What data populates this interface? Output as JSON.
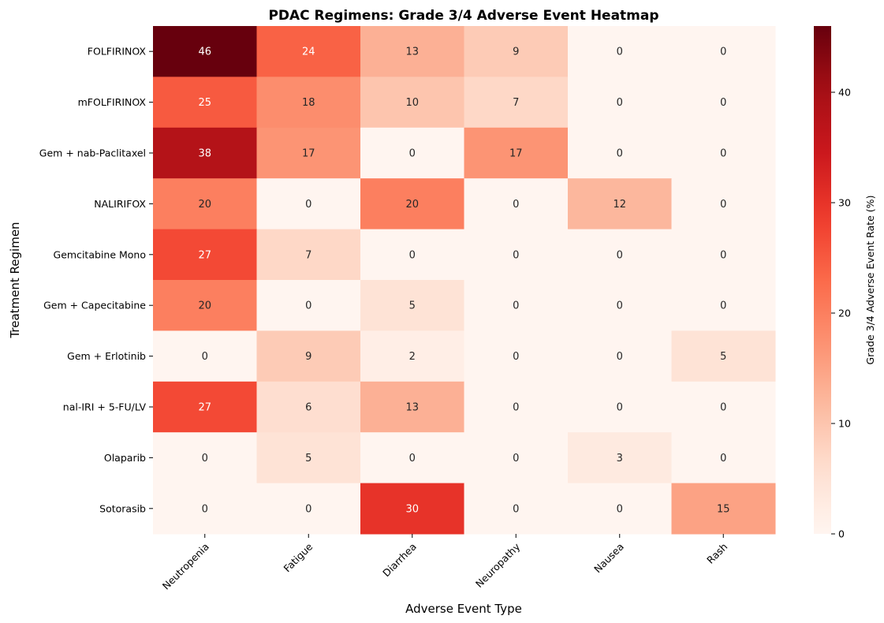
{
  "chart_data": {
    "type": "heatmap",
    "title": "PDAC Regimens: Grade 3/4 Adverse Event Heatmap",
    "xlabel": "Adverse Event Type",
    "ylabel": "Treatment Regimen",
    "colorbar_label": "Grade 3/4 Adverse Event Rate (%)",
    "colormap": "Reds",
    "vmin": 0,
    "vmax": 46,
    "colorbar_ticks": [
      0,
      10,
      20,
      30,
      40
    ],
    "columns": [
      "Neutropenia",
      "Fatigue",
      "Diarrhea",
      "Neuropathy",
      "Nausea",
      "Rash"
    ],
    "rows": [
      "FOLFIRINOX",
      "mFOLFIRINOX",
      "Gem + nab-Paclitaxel",
      "NALIRIFOX",
      "Gemcitabine Mono",
      "Gem + Capecitabine",
      "Gem + Erlotinib",
      "nal-IRI + 5-FU/LV",
      "Olaparib",
      "Sotorasib"
    ],
    "values": [
      [
        46,
        24,
        13,
        9,
        0,
        0
      ],
      [
        25,
        18,
        10,
        7,
        0,
        0
      ],
      [
        38,
        17,
        0,
        17,
        0,
        0
      ],
      [
        20,
        0,
        20,
        0,
        12,
        0
      ],
      [
        27,
        7,
        0,
        0,
        0,
        0
      ],
      [
        20,
        0,
        5,
        0,
        0,
        0
      ],
      [
        0,
        9,
        2,
        0,
        0,
        5
      ],
      [
        27,
        6,
        13,
        0,
        0,
        0
      ],
      [
        0,
        5,
        0,
        0,
        3,
        0
      ],
      [
        0,
        0,
        30,
        0,
        0,
        15
      ]
    ]
  }
}
